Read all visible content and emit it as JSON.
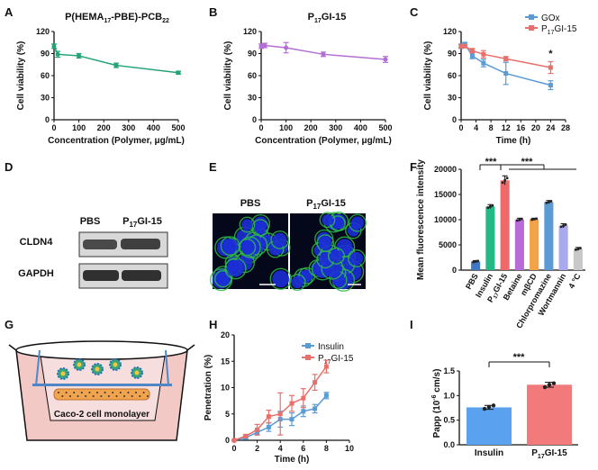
{
  "panels": {
    "A": "A",
    "B": "B",
    "C": "C",
    "D": "D",
    "E": "E",
    "F": "F",
    "G": "G",
    "H": "H",
    "I": "I"
  },
  "chart_data": [
    {
      "id": "A",
      "type": "line",
      "title_main": "P(HEMA",
      "title_sub1": "17",
      "title_mid": "-PBE)-PCB",
      "title_sub2": "22",
      "xlabel": "Concentration (Polymer, μg/mL)",
      "ylabel": "Cell viability (%)",
      "xlim": [
        0,
        500
      ],
      "ylim": [
        0,
        120
      ],
      "xticks": [
        "0",
        "100",
        "200",
        "300",
        "400",
        "500"
      ],
      "yticks": [
        "0",
        "30",
        "60",
        "90",
        "120"
      ],
      "color": "#22a37a",
      "series": [
        {
          "name": "P(HEMA17-PBE)-PCB22",
          "x": [
            0,
            15,
            100,
            250,
            500
          ],
          "y": [
            100,
            89,
            87,
            74,
            64
          ],
          "err": [
            3,
            4,
            3,
            3,
            2
          ]
        }
      ]
    },
    {
      "id": "B",
      "type": "line",
      "title_main": "P",
      "title_sub1": "17",
      "title_mid": "GI-15",
      "title_sub2": "",
      "xlabel": "Concentration (Polymer, μg/mL)",
      "ylabel": "Cell viability (%)",
      "xlim": [
        0,
        500
      ],
      "ylim": [
        0,
        120
      ],
      "xticks": [
        "0",
        "100",
        "200",
        "300",
        "400",
        "500"
      ],
      "yticks": [
        "0",
        "30",
        "60",
        "90",
        "120"
      ],
      "color": "#b36fd6",
      "series": [
        {
          "name": "P17GI-15",
          "x": [
            0,
            15,
            100,
            250,
            500
          ],
          "y": [
            100,
            101,
            98,
            89,
            82
          ],
          "err": [
            3,
            3,
            7,
            3,
            4
          ]
        }
      ]
    },
    {
      "id": "C",
      "type": "line",
      "xlabel": "Time (h)",
      "ylabel": "Cell viability (%)",
      "xlim": [
        0,
        28
      ],
      "ylim": [
        0,
        120
      ],
      "xticks": [
        "0",
        "4",
        "8",
        "12",
        "16",
        "20",
        "24",
        "28"
      ],
      "yticks": [
        "0",
        "30",
        "60",
        "90",
        "120"
      ],
      "annotation": "*",
      "legend": [
        {
          "main": "GOx",
          "sub": "",
          "tail": "",
          "color": "#5b9bd5"
        },
        {
          "main": "P",
          "sub": "17",
          "tail": "GI-15",
          "color": "#e8706a"
        }
      ],
      "series": [
        {
          "name": "GOx",
          "color": "#5b9bd5",
          "x": [
            0,
            1,
            3,
            6,
            12,
            24
          ],
          "y": [
            100,
            103,
            87,
            77,
            63,
            47
          ],
          "err": [
            3,
            2,
            4,
            5,
            15,
            6
          ]
        },
        {
          "name": "P17GI-15",
          "color": "#e8706a",
          "x": [
            0,
            1,
            3,
            6,
            12,
            24
          ],
          "y": [
            100,
            100,
            94,
            89,
            83,
            71
          ],
          "err": [
            2,
            2,
            3,
            5,
            3,
            8
          ]
        }
      ]
    },
    {
      "id": "F",
      "type": "bar",
      "ylabel": "Mean fluorescence intensity",
      "ylim": [
        0,
        20000
      ],
      "yticks": [
        "0",
        "5000",
        "10000",
        "15000",
        "20000"
      ],
      "sig_labels": [
        "***",
        "***"
      ],
      "categories": [
        "PBS",
        "Insulin",
        "P17GI-15",
        "Betaine",
        "mβCD",
        "Chlorpromazine",
        "Wortmannin",
        "4 °C"
      ],
      "values": [
        1700,
        12600,
        17800,
        10000,
        10100,
        13500,
        8800,
        4200
      ],
      "errors": [
        200,
        400,
        900,
        300,
        200,
        300,
        400,
        300
      ],
      "colors": [
        "#3f78c6",
        "#24b886",
        "#ee6a6a",
        "#b86ad6",
        "#f3a346",
        "#5b9bd5",
        "#a9a9ef",
        "#c8c8c8"
      ]
    },
    {
      "id": "H",
      "type": "line",
      "xlabel": "Time (h)",
      "ylabel": "Penetration (%)",
      "xlim": [
        0,
        10
      ],
      "ylim": [
        0,
        20
      ],
      "xticks": [
        "0",
        "2",
        "4",
        "6",
        "8",
        "10"
      ],
      "yticks": [
        "0",
        "5",
        "10",
        "15",
        "20"
      ],
      "legend": [
        {
          "main": "Insulin",
          "sub": "",
          "tail": "",
          "color": "#5b9bd5"
        },
        {
          "main": "P",
          "sub": "17",
          "tail": "GI-15",
          "color": "#e8706a"
        }
      ],
      "series": [
        {
          "name": "Insulin",
          "color": "#5b9bd5",
          "x": [
            0,
            1,
            2,
            3,
            4,
            5,
            6,
            7,
            8
          ],
          "y": [
            0,
            0.5,
            1.5,
            2.5,
            4,
            4,
            5.5,
            6,
            8.5
          ],
          "err": [
            0,
            0.3,
            0.5,
            0.8,
            1.5,
            1.2,
            1,
            0.8,
            0.6
          ]
        },
        {
          "name": "P17GI-15",
          "color": "#e8706a",
          "x": [
            0,
            1,
            2,
            3,
            4,
            5,
            6,
            7,
            8
          ],
          "y": [
            0,
            0.8,
            2,
            4.5,
            5,
            7,
            8,
            11,
            14
          ],
          "err": [
            0,
            0.3,
            1,
            1.2,
            4,
            1.5,
            1.8,
            1.5,
            1.2
          ]
        }
      ]
    },
    {
      "id": "I",
      "type": "bar",
      "ylabel_main": "Papp (10",
      "ylabel_sup": "-6",
      "ylabel_tail": " cm/s)",
      "ylim": [
        0,
        1.5
      ],
      "yticks": [
        "0.0",
        "0.5",
        "1.0",
        "1.5"
      ],
      "sig": "***",
      "categories": [
        "Insulin",
        "P17GI-15"
      ],
      "cat_labels": [
        {
          "main": "Insulin",
          "sub": "",
          "tail": ""
        },
        {
          "main": "P",
          "sub": "17",
          "tail": "GI-15"
        }
      ],
      "values": [
        0.76,
        1.22
      ],
      "errors": [
        0.04,
        0.05
      ],
      "points": [
        [
          0.73,
          0.77,
          0.8
        ],
        [
          1.17,
          1.22,
          1.25
        ]
      ],
      "colors": [
        "#5aa2f0",
        "#f27a7a"
      ]
    }
  ],
  "western": {
    "lane_left": "PBS",
    "lane_right_main": "P",
    "lane_right_sub": "17",
    "lane_right_tail": "GI-15",
    "rows": [
      "CLDN4",
      "GAPDH"
    ]
  },
  "micro": {
    "left": "PBS",
    "right_main": "P",
    "right_sub": "17",
    "right_tail": "GI-15"
  },
  "transwell": {
    "label": "Caco-2 cell monolayer"
  }
}
